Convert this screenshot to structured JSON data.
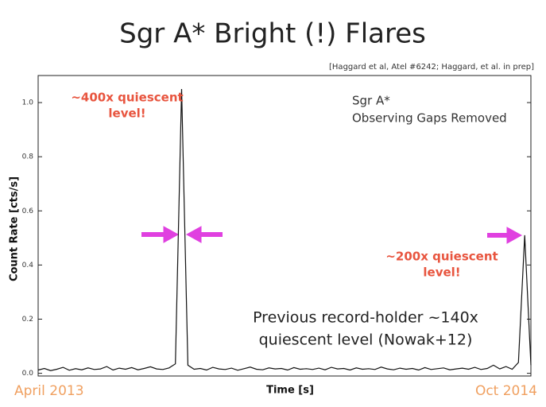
{
  "chart_data": {
    "type": "line",
    "title": "Sgr A* Bright (!) Flares",
    "citation": "[Haggard et al, Atel #6242; Haggard, et al. in prep]",
    "y_label": "Count Rate [cts/s]",
    "x_label": "Time [s]",
    "x_start": "April 2013",
    "x_end": "Oct 2014",
    "color": "#111111",
    "ylim": [
      -0.01,
      1.1
    ],
    "yticks": [
      {
        "value": 0,
        "label": "0.0"
      },
      0.2,
      0.4,
      0.6,
      0.8,
      {
        "value": 1,
        "label": "1.0"
      }
    ],
    "values": [
      0.012,
      0.018,
      0.01,
      0.015,
      0.022,
      0.011,
      0.017,
      0.013,
      0.02,
      0.014,
      0.016,
      0.025,
      0.012,
      0.019,
      0.015,
      0.021,
      0.013,
      0.018,
      0.024,
      0.016,
      0.014,
      0.02,
      0.035,
      1.05,
      0.03,
      0.015,
      0.018,
      0.012,
      0.022,
      0.016,
      0.014,
      0.019,
      0.011,
      0.017,
      0.023,
      0.015,
      0.013,
      0.02,
      0.016,
      0.018,
      0.012,
      0.021,
      0.015,
      0.017,
      0.014,
      0.019,
      0.013,
      0.022,
      0.016,
      0.018,
      0.012,
      0.02,
      0.015,
      0.017,
      0.014,
      0.023,
      0.016,
      0.013,
      0.019,
      0.015,
      0.018,
      0.012,
      0.021,
      0.014,
      0.017,
      0.02,
      0.013,
      0.016,
      0.019,
      0.015,
      0.022,
      0.014,
      0.018,
      0.03,
      0.016,
      0.025,
      0.015,
      0.04,
      0.51,
      0.03
    ],
    "annotations": [
      {
        "lines": [
          "~400x quiescent",
          "level!"
        ],
        "color": "#e8553f"
      },
      {
        "lines": [
          "Sgr A*",
          "Observing Gaps Removed"
        ],
        "color": "#333333"
      },
      {
        "lines": [
          "~200x quiescent",
          "level!"
        ],
        "color": "#e8553f"
      },
      {
        "lines": [
          "Previous record-holder ~140x",
          "quiescent level (Nowak+12)"
        ],
        "color": "#222222"
      }
    ]
  }
}
